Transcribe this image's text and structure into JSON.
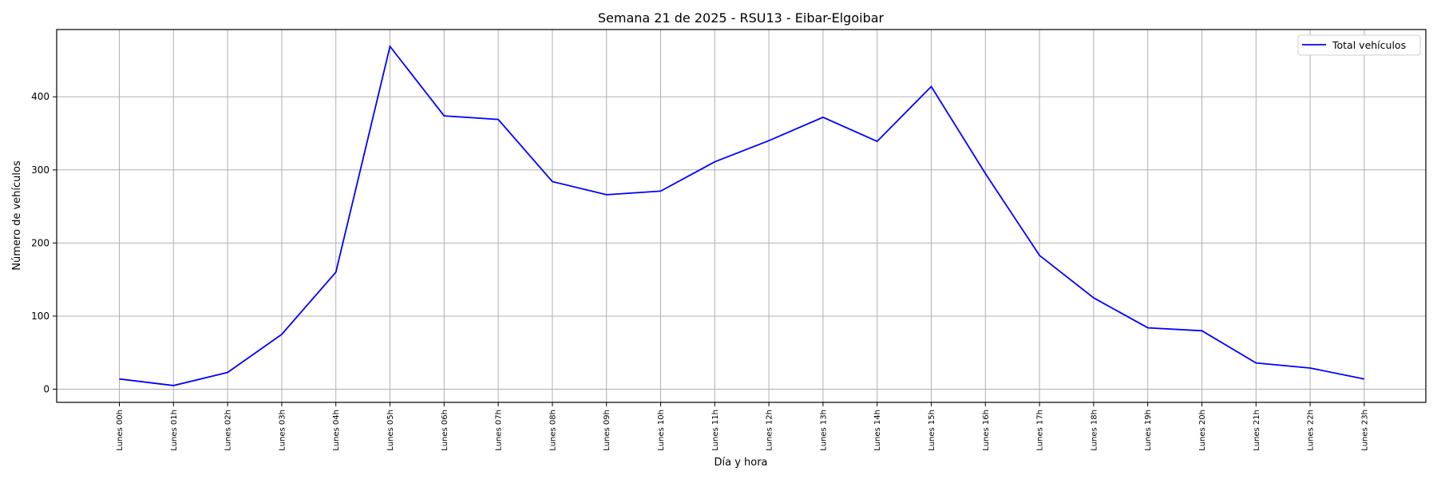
{
  "chart_data": {
    "type": "line",
    "title": "Semana 21 de 2025 - RSU13 - Eibar-Elgoibar",
    "xlabel": "Día y hora",
    "ylabel": "Número de vehículos",
    "categories": [
      "Lunes 00h",
      "Lunes 01h",
      "Lunes 02h",
      "Lunes 03h",
      "Lunes 04h",
      "Lunes 05h",
      "Lunes 06h",
      "Lunes 07h",
      "Lunes 08h",
      "Lunes 09h",
      "Lunes 10h",
      "Lunes 11h",
      "Lunes 12h",
      "Lunes 13h",
      "Lunes 14h",
      "Lunes 15h",
      "Lunes 16h",
      "Lunes 17h",
      "Lunes 18h",
      "Lunes 19h",
      "Lunes 20h",
      "Lunes 21h",
      "Lunes 22h",
      "Lunes 23h"
    ],
    "series": [
      {
        "name": "Total vehículos",
        "color": "#0000ff",
        "values": [
          14,
          5,
          23,
          75,
          160,
          469,
          374,
          369,
          284,
          266,
          271,
          311,
          340,
          372,
          339,
          414,
          295,
          183,
          125,
          84,
          80,
          36,
          29,
          14
        ]
      }
    ],
    "yticks": [
      0,
      100,
      200,
      300,
      400
    ],
    "ylim": [
      -18,
      492
    ],
    "grid": true,
    "legend_position": "top-right"
  }
}
